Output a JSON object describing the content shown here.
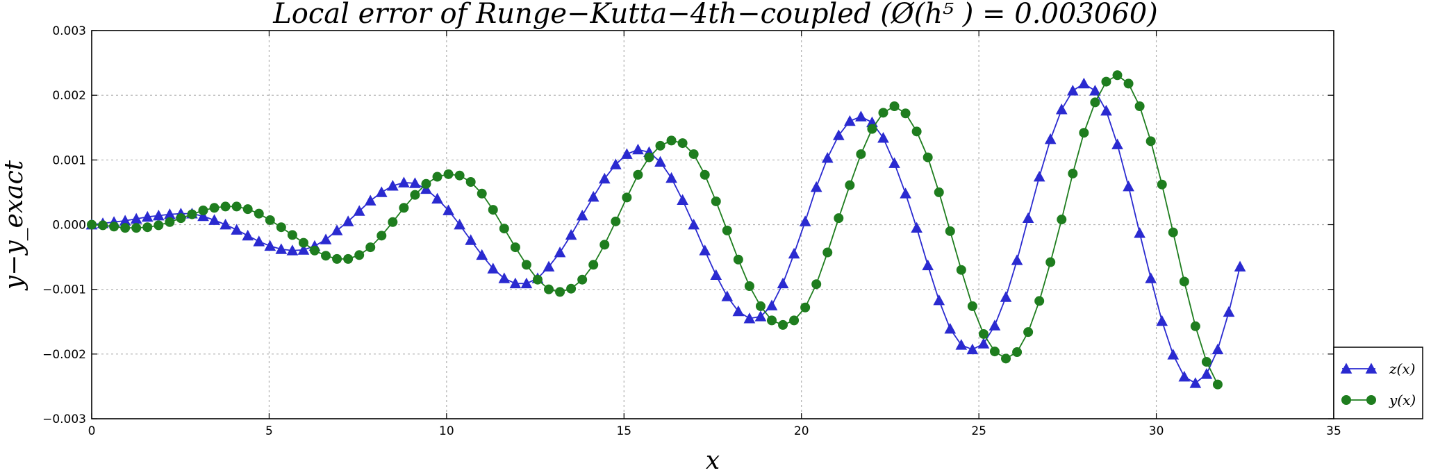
{
  "chart_data": {
    "type": "line",
    "title": "Local error of Runge−Kutta−4th−coupled (Ø(h⁵ ) = 0.003060)",
    "xlabel": "x",
    "ylabel": "y−y_exact",
    "xlim": [
      0,
      35
    ],
    "ylim": [
      -0.003,
      0.003
    ],
    "x_ticks": [
      0,
      5,
      10,
      15,
      20,
      25,
      30,
      35
    ],
    "x_tick_labels": [
      "0",
      "5",
      "10",
      "15",
      "20",
      "25",
      "30",
      "35"
    ],
    "y_ticks": [
      -0.003,
      -0.002,
      -0.001,
      0,
      0.001,
      0.002,
      0.003
    ],
    "y_tick_labels": [
      "−0.003",
      "−0.002",
      "−0.001",
      "0.000",
      "0.001",
      "0.002",
      "0.003"
    ],
    "grid": true,
    "legend_position": "bottom-right, outside plot",
    "series": [
      {
        "name": "z(x)",
        "marker": "triangle",
        "color": "#2a2ad0",
        "x_start": 0,
        "x_step": 0.314159,
        "values": [
          0.0,
          2e-05,
          4e-05,
          6e-05,
          9e-05,
          0.00012,
          0.00014,
          0.00016,
          0.00017,
          0.00017,
          0.00013,
          7e-05,
          0.0,
          -8e-05,
          -0.00017,
          -0.00026,
          -0.00033,
          -0.00038,
          -0.0004,
          -0.00039,
          -0.00033,
          -0.00023,
          -9e-05,
          5e-05,
          0.00021,
          0.00037,
          0.0005,
          0.0006,
          0.00065,
          0.00064,
          0.00055,
          0.0004,
          0.00022,
          0.0,
          -0.00024,
          -0.00047,
          -0.00068,
          -0.00083,
          -0.00091,
          -0.00091,
          -0.00083,
          -0.00065,
          -0.00043,
          -0.00016,
          0.00014,
          0.00043,
          0.00071,
          0.00093,
          0.00109,
          0.00116,
          0.00112,
          0.00097,
          0.00072,
          0.00038,
          0.0,
          -0.0004,
          -0.00078,
          -0.00111,
          -0.00134,
          -0.00145,
          -0.00142,
          -0.00125,
          -0.00091,
          -0.00045,
          5e-05,
          0.00058,
          0.00103,
          0.00138,
          0.0016,
          0.00167,
          0.00158,
          0.00134,
          0.00095,
          0.00048,
          -5e-05,
          -0.00063,
          -0.00117,
          -0.00161,
          -0.00186,
          -0.00193,
          -0.00184,
          -0.00156,
          -0.00112,
          -0.00055,
          0.0001,
          0.00074,
          0.00132,
          0.00178,
          0.00207,
          0.00218,
          0.00207,
          0.00176,
          0.00124,
          0.00059,
          -0.00013,
          -0.00083,
          -0.00149,
          -0.00201,
          -0.00235,
          -0.00245,
          -0.00231,
          -0.00193,
          -0.00135,
          -0.00065
        ]
      },
      {
        "name": "y(x)",
        "marker": "circle",
        "color": "#1e7d1e",
        "x_start": 0,
        "x_step": 0.314159,
        "values": [
          0.0,
          -1e-05,
          -3e-05,
          -5e-05,
          -5e-05,
          -4e-05,
          -1e-05,
          4e-05,
          0.0001,
          0.00016,
          0.00022,
          0.00026,
          0.00028,
          0.00028,
          0.00024,
          0.00017,
          7e-05,
          -4e-05,
          -0.00016,
          -0.00028,
          -0.0004,
          -0.00048,
          -0.00053,
          -0.00053,
          -0.00047,
          -0.00035,
          -0.00017,
          4e-05,
          0.00026,
          0.00046,
          0.00063,
          0.00074,
          0.00078,
          0.00076,
          0.00066,
          0.00048,
          0.00023,
          -6e-05,
          -0.00035,
          -0.00062,
          -0.00085,
          -0.001,
          -0.00104,
          -0.00099,
          -0.00085,
          -0.00062,
          -0.00031,
          5e-05,
          0.00042,
          0.00077,
          0.00104,
          0.00122,
          0.0013,
          0.00126,
          0.00109,
          0.00077,
          0.00036,
          -9e-05,
          -0.00054,
          -0.00095,
          -0.00126,
          -0.00148,
          -0.00155,
          -0.00148,
          -0.00128,
          -0.00092,
          -0.00043,
          0.0001,
          0.00061,
          0.00109,
          0.00148,
          0.00173,
          0.00183,
          0.00172,
          0.00144,
          0.00104,
          0.0005,
          -0.0001,
          -0.0007,
          -0.00126,
          -0.00169,
          -0.00196,
          -0.00207,
          -0.00197,
          -0.00166,
          -0.00118,
          -0.00058,
          8e-05,
          0.00079,
          0.00142,
          0.00189,
          0.00221,
          0.00231,
          0.00218,
          0.00183,
          0.00129,
          0.00062,
          -0.00012,
          -0.00088,
          -0.00157,
          -0.00212,
          -0.00247
        ]
      }
    ]
  }
}
